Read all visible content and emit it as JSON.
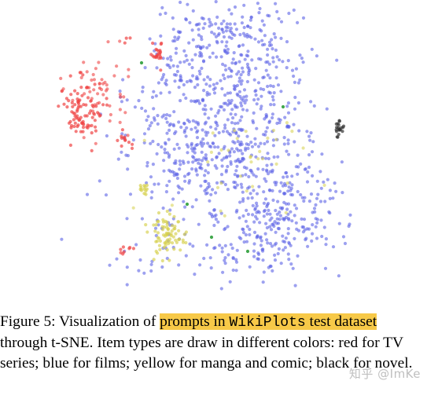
{
  "chart_data": {
    "type": "scatter",
    "title": "",
    "xlabel": "",
    "ylabel": "",
    "axes_visible": false,
    "grid": false,
    "legend": "none",
    "series": [
      {
        "name": "TV series",
        "color": "#ef4444"
      },
      {
        "name": "films",
        "color": "#5b63e6"
      },
      {
        "name": "manga and comic",
        "color": "#d6d04a"
      },
      {
        "name": "novel",
        "color": "#333333"
      }
    ]
  },
  "caption": {
    "label": "Figure 5:",
    "text_1": " Visualization of ",
    "hl_1": "prompts in ",
    "hl_mono": "WikiPlots",
    "hl_2": " test dataset",
    "text_2": " through t-SNE. Item types are draw in different colors: red for TV series; blue for films; yellow for manga and comic; black for novel."
  },
  "watermark": "知乎 @ImKe"
}
